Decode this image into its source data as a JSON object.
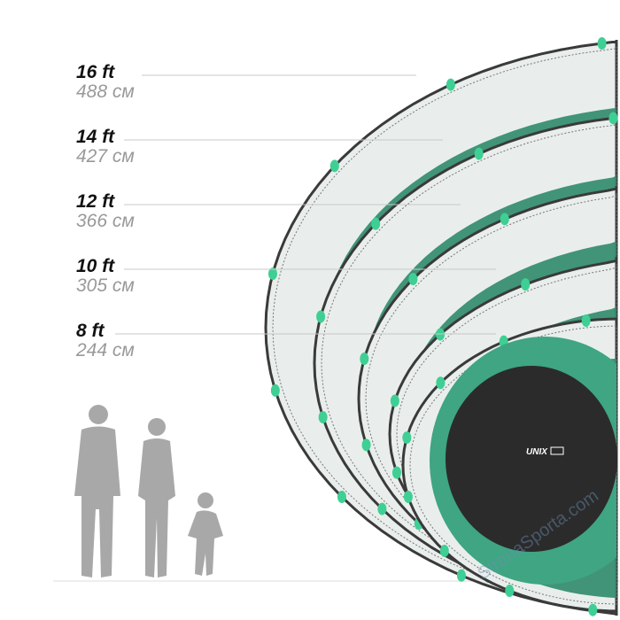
{
  "sizes": [
    {
      "ft": "16 ft",
      "cm": "488 см"
    },
    {
      "ft": "14 ft",
      "cm": "427 см"
    },
    {
      "ft": "12 ft",
      "cm": "366 см"
    },
    {
      "ft": "10 ft",
      "cm": "305 см"
    },
    {
      "ft": "8 ft",
      "cm": "244 см"
    }
  ],
  "logo": "UNIX line",
  "watermark": "StranaSporta.com",
  "colors": {
    "pad": "#2f8a6a",
    "mat": "#2b2b2b",
    "net": "#3a3a3a",
    "silhouette": "#a8a8a8",
    "pole_cap": "#3fcf94"
  }
}
